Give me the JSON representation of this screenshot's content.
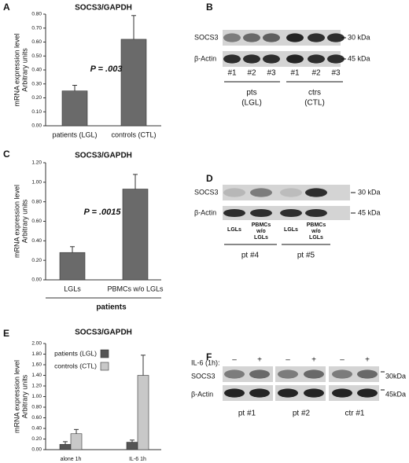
{
  "panels": [
    "A",
    "B",
    "C",
    "D",
    "E",
    "F"
  ],
  "chart_data": [
    {
      "type": "bar",
      "title": "SOCS3/GAPDH",
      "ylabel": [
        "mRNA expression level",
        "Arbitrary units"
      ],
      "categories": [
        "patients (LGL)",
        "controls (CTL)"
      ],
      "values": [
        0.25,
        0.62
      ],
      "errors": [
        0.04,
        0.17
      ],
      "color": "#6a6a6a",
      "ylim": [
        0,
        0.8
      ],
      "yticks": [
        {
          "value": 0,
          "label": "0.00"
        },
        {
          "value": 0.1,
          "label": "0.10"
        },
        {
          "value": 0.2,
          "label": "0.20"
        },
        {
          "value": 0.3,
          "label": "0.30"
        },
        {
          "value": 0.4,
          "label": "0.40"
        },
        {
          "value": 0.5,
          "label": "0.50"
        },
        {
          "value": 0.6,
          "label": "0.60"
        },
        {
          "value": 0.7,
          "label": "0.70"
        },
        {
          "value": 0.8,
          "label": "0.80"
        }
      ],
      "annotation": "P = .003"
    },
    {
      "type": "bar",
      "title": "SOCS3/GAPDH",
      "ylabel": [
        "mRNA expression level",
        "Arbitrary units"
      ],
      "categories": [
        "LGLs",
        "PBMCs w/o LGLs"
      ],
      "values": [
        0.28,
        0.93
      ],
      "errors": [
        0.06,
        0.15
      ],
      "color": "#6a6a6a",
      "ylim": [
        0,
        1.2
      ],
      "yticks": [
        {
          "value": 0,
          "label": "0.00"
        },
        {
          "value": 0.2,
          "label": "0.20"
        },
        {
          "value": 0.4,
          "label": "0.40"
        },
        {
          "value": 0.6,
          "label": "0.60"
        },
        {
          "value": 0.8,
          "label": "0.80"
        },
        {
          "value": 1,
          "label": "1.00"
        },
        {
          "value": 1.2,
          "label": "1.20"
        }
      ],
      "annotation": "P = .0015",
      "group_label": "patients"
    },
    {
      "type": "bar",
      "title": "SOCS3/GAPDH",
      "ylabel": [
        "mRNA expression level",
        "Arbitrary units"
      ],
      "categories": [
        "alone 1h",
        "IL-6 1h"
      ],
      "series": [
        {
          "name": "patients (LGL)",
          "color": "#555555",
          "values": [
            0.1,
            0.14
          ],
          "errors": [
            0.05,
            0.04
          ]
        },
        {
          "name": "controls (CTL)",
          "color": "#c8c8c8",
          "values": [
            0.3,
            1.4
          ],
          "errors": [
            0.08,
            0.38
          ]
        }
      ],
      "ylim": [
        0,
        2
      ],
      "yticks": [
        {
          "value": 0,
          "label": "0.00"
        },
        {
          "value": 0.2,
          "label": "0.20"
        },
        {
          "value": 0.4,
          "label": "0.40"
        },
        {
          "value": 0.6,
          "label": "0.60"
        },
        {
          "value": 0.8,
          "label": "0.80"
        },
        {
          "value": 1,
          "label": "1.00"
        },
        {
          "value": 1.2,
          "label": "1.20"
        },
        {
          "value": 1.4,
          "label": "1.40"
        },
        {
          "value": 1.6,
          "label": "1.60"
        },
        {
          "value": 1.8,
          "label": "1.80"
        },
        {
          "value": 2,
          "label": "2.00"
        }
      ],
      "legend": "upper left"
    }
  ],
  "blots": [
    {
      "rows": [
        "SOCS3",
        "β-Actin"
      ],
      "markers": [
        "30 kDa",
        "45 kDa"
      ],
      "lanes": [
        "#1",
        "#2",
        "#3",
        "#1",
        "#2",
        "#3"
      ],
      "groups": [
        [
          "pts",
          "(LGL)"
        ],
        [
          "ctrs",
          "(CTL)"
        ]
      ]
    },
    {
      "rows": [
        "SOCS3",
        "β-Actin"
      ],
      "markers": [
        "30 kDa",
        "45 kDa"
      ],
      "lanes": [
        [
          "LGLs"
        ],
        [
          "PBMCs",
          "w/o",
          "LGLs"
        ],
        [
          "LGLs"
        ],
        [
          "PBMCs",
          "w/o",
          "LGLs"
        ]
      ],
      "groups": [
        "pt #4",
        "pt #5"
      ]
    },
    {
      "treatment": "IL-6 (1h):",
      "signs": [
        "–",
        "+",
        "–",
        "+",
        "–",
        "+"
      ],
      "rows": [
        "SOCS3",
        "β-Actin"
      ],
      "markers": [
        "30kDa",
        "45kDa"
      ],
      "groups": [
        "pt #1",
        "pt #2",
        "ctr #1"
      ]
    }
  ]
}
